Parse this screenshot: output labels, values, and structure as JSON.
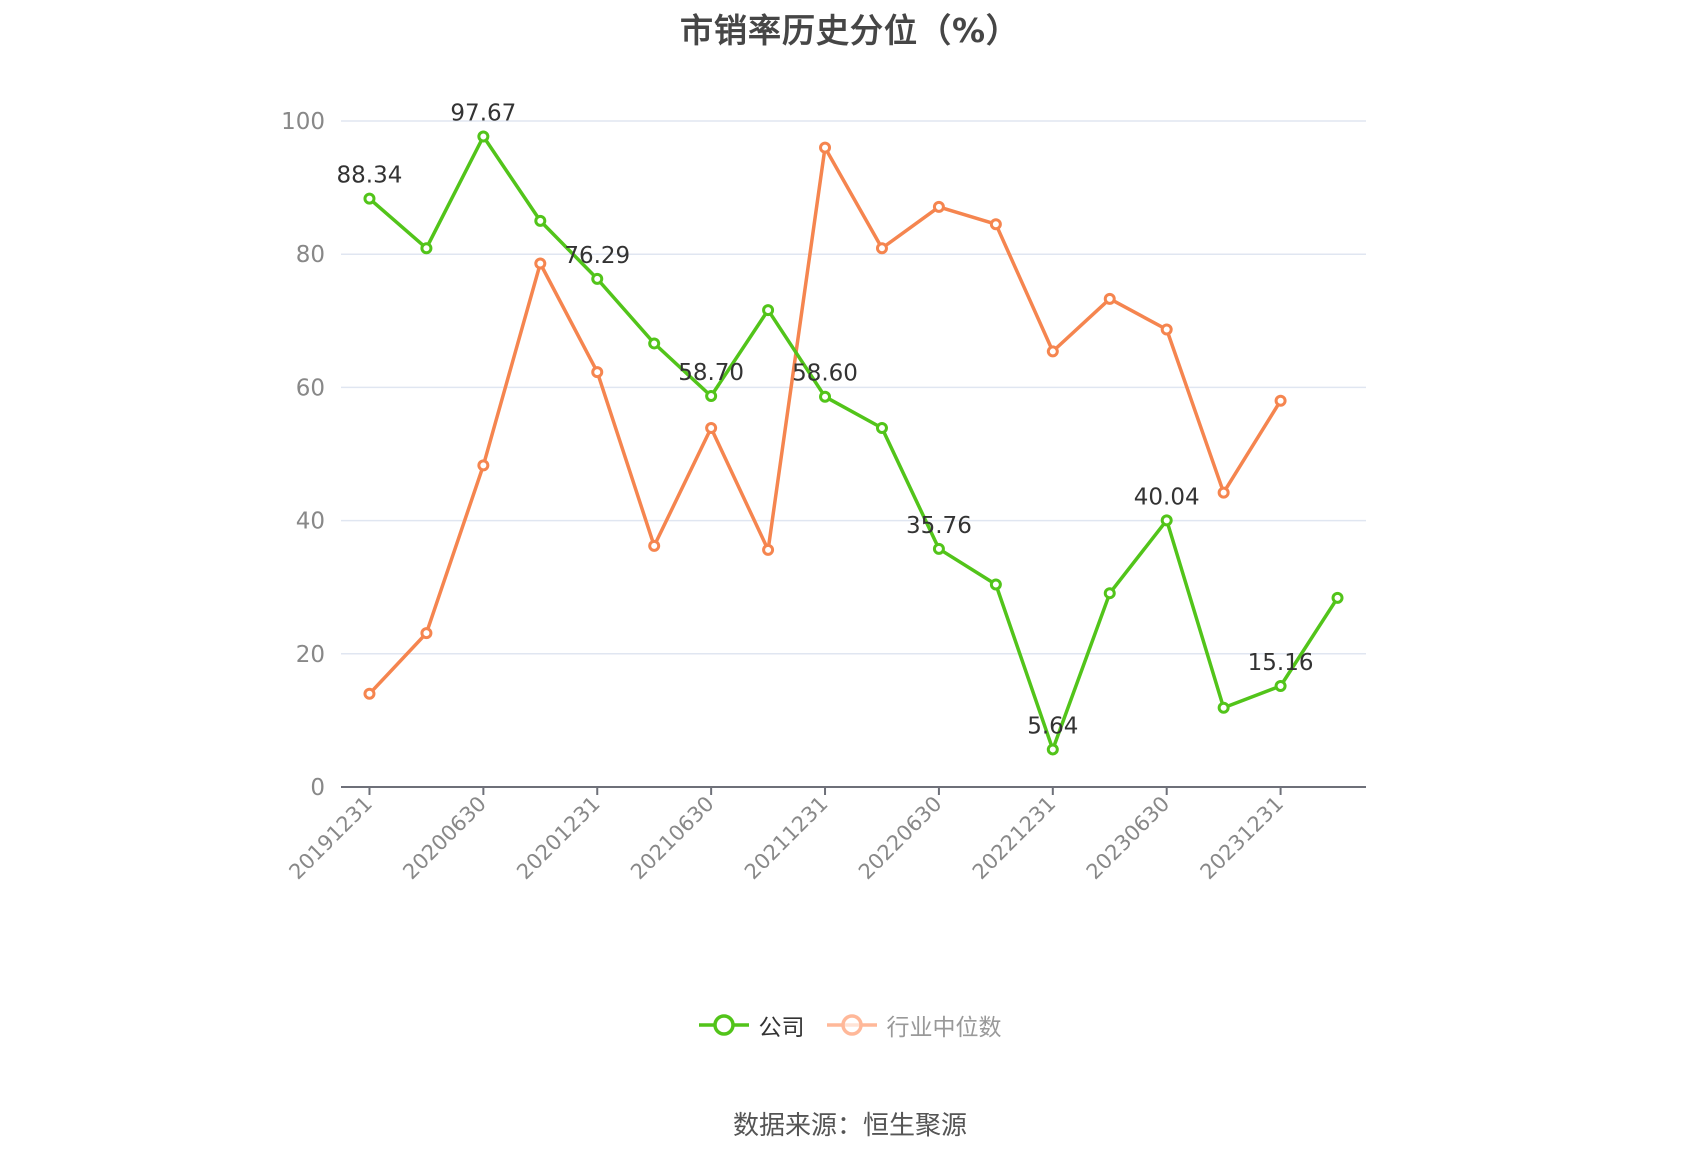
{
  "title": "市销率历史分位（%）",
  "source": "数据来源：恒生聚源",
  "legend": [
    {
      "label": "公司",
      "color": "#52c41a",
      "active": true
    },
    {
      "label": "行业中位数",
      "color": "#ff8a50",
      "active": false
    }
  ],
  "colors": {
    "company": "#52c41a",
    "industry": "#f5854f",
    "grid": "#e0e6f1",
    "axis": "#6e7079",
    "tick_label": "#888888",
    "data_label": "#333333"
  },
  "chart_data": {
    "type": "line",
    "title": "市销率历史分位（%）",
    "xlabel": "",
    "ylabel": "",
    "ylim": [
      0,
      100
    ],
    "yticks": [
      0,
      20,
      40,
      60,
      80,
      100
    ],
    "grid": true,
    "legend_position": "bottom",
    "x": [
      "20191231",
      "20200331",
      "20200630",
      "20200930",
      "20201231",
      "20210331",
      "20210630",
      "20210930",
      "20211231",
      "20220331",
      "20220630",
      "20220930",
      "20221231",
      "20230331",
      "20230630",
      "20230930",
      "20231231",
      "20240331"
    ],
    "x_tick_labels_shown": [
      "20191231",
      "20200630",
      "20201231",
      "20210630",
      "20211231",
      "20220630",
      "20221231",
      "20230630",
      "20231231"
    ],
    "series": [
      {
        "name": "公司",
        "values": [
          88.34,
          80.9,
          97.67,
          85.0,
          76.29,
          66.6,
          58.7,
          71.6,
          58.6,
          53.9,
          35.76,
          30.4,
          5.64,
          29.1,
          40.04,
          11.9,
          15.16,
          28.4
        ],
        "labeled_points": {
          "0": "88.34",
          "2": "97.67",
          "4": "76.29",
          "6": "58.70",
          "8": "58.60",
          "10": "35.76",
          "12": "5.64",
          "14": "40.04",
          "16": "15.16"
        }
      },
      {
        "name": "行业中位数",
        "values": [
          14.0,
          23.1,
          48.3,
          78.6,
          62.3,
          36.2,
          53.9,
          35.6,
          96.0,
          80.9,
          87.1,
          84.5,
          65.4,
          73.3,
          68.7,
          44.2,
          58.0,
          null
        ]
      }
    ]
  }
}
